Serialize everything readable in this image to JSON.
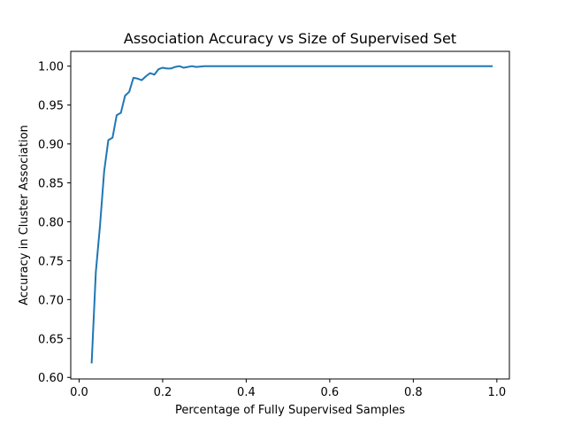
{
  "chart_data": {
    "type": "line",
    "title": "Association Accuracy vs Size of Supervised Set",
    "xlabel": "Percentage of Fully Supervised Samples",
    "ylabel": "Accuracy in Cluster Association",
    "xlim": [
      -0.02,
      1.03
    ],
    "ylim": [
      0.598,
      1.019
    ],
    "grid": false,
    "series_color": "#1f77b4",
    "x_ticks": [
      {
        "value": 0.0,
        "label": "0.0"
      },
      {
        "value": 0.2,
        "label": "0.2"
      },
      {
        "value": 0.4,
        "label": "0.4"
      },
      {
        "value": 0.6,
        "label": "0.6"
      },
      {
        "value": 0.8,
        "label": "0.8"
      },
      {
        "value": 1.0,
        "label": "1.0"
      }
    ],
    "y_ticks": [
      {
        "value": 0.6,
        "label": "0.60"
      },
      {
        "value": 0.65,
        "label": "0.65"
      },
      {
        "value": 0.7,
        "label": "0.70"
      },
      {
        "value": 0.75,
        "label": "0.75"
      },
      {
        "value": 0.8,
        "label": "0.80"
      },
      {
        "value": 0.85,
        "label": "0.85"
      },
      {
        "value": 0.9,
        "label": "0.90"
      },
      {
        "value": 0.95,
        "label": "0.95"
      },
      {
        "value": 1.0,
        "label": "1.00"
      }
    ],
    "series": [
      {
        "x": [
          0.03,
          0.04,
          0.05,
          0.06,
          0.07,
          0.08,
          0.09,
          0.1,
          0.11,
          0.12,
          0.13,
          0.14,
          0.15,
          0.16,
          0.17,
          0.18,
          0.19,
          0.2,
          0.21,
          0.22,
          0.23,
          0.24,
          0.25,
          0.26,
          0.27,
          0.28,
          0.3,
          0.4,
          0.5,
          0.6,
          0.7,
          0.8,
          0.9,
          0.99
        ],
        "y": [
          0.618,
          0.735,
          0.795,
          0.865,
          0.905,
          0.908,
          0.937,
          0.94,
          0.962,
          0.967,
          0.985,
          0.984,
          0.982,
          0.987,
          0.991,
          0.989,
          0.996,
          0.998,
          0.997,
          0.997,
          0.999,
          1.0,
          0.998,
          0.999,
          1.0,
          0.999,
          1.0,
          1.0,
          1.0,
          1.0,
          1.0,
          1.0,
          1.0,
          1.0
        ]
      }
    ]
  }
}
